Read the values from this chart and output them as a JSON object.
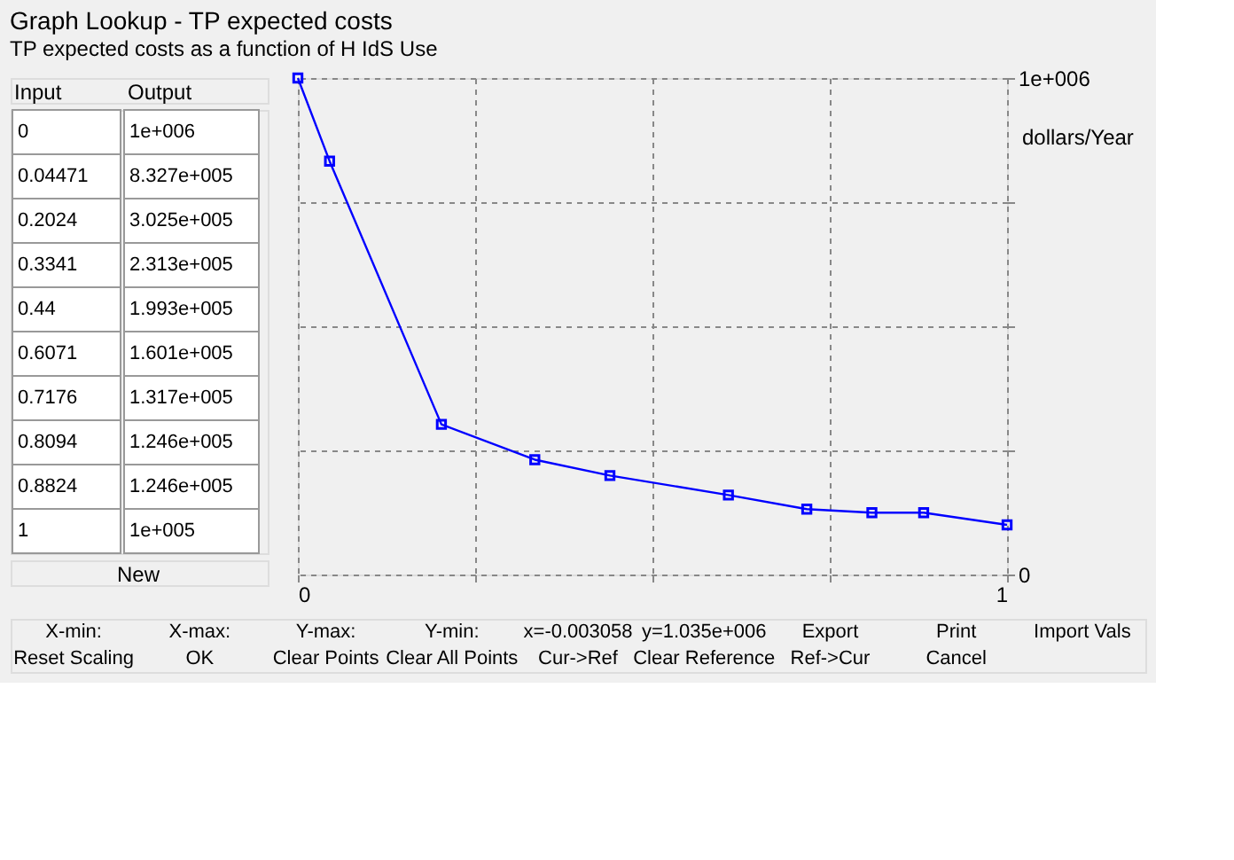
{
  "chart_data": [
    {
      "type": "other",
      "xlabel": "Input",
      "ylabel": "Output",
      "categories": [
        "0",
        "0.04471",
        "0.2024",
        "0.3341",
        "0.44",
        "0.6071",
        "0.7176",
        "0.8094",
        "0.8824",
        "1"
      ],
      "value_labels": [
        "1e+006",
        "8.327e+005",
        "3.025e+005",
        "2.313e+005",
        "1.993e+005",
        "1.601e+005",
        "1.317e+005",
        "1.246e+005",
        "1.246e+005",
        "1e+005"
      ],
      "annotations": [
        "New"
      ]
    },
    {
      "type": "line",
      "title": "Graph Lookup - TP expected costs",
      "subtitle": "TP expected costs as a function of H IdS Use",
      "ylabel": "dollars/Year",
      "x": [
        0,
        0.04471,
        0.2024,
        0.3341,
        0.44,
        0.6071,
        0.7176,
        0.8094,
        0.8824,
        1
      ],
      "series": [
        {
          "color": "#0000ff",
          "values": [
            1000000,
            832700,
            302500,
            231300,
            199300,
            160100,
            131700,
            124600,
            124600,
            100000
          ]
        }
      ],
      "xlim": [
        0,
        1
      ],
      "xticks": [
        0,
        {
          "value": 0.25,
          "label": null
        },
        {
          "value": 0.5,
          "label": null
        },
        {
          "value": 0.75,
          "label": null
        },
        1
      ],
      "ylim": [
        0,
        1000000
      ],
      "yticks": [
        0,
        {
          "value": 250000,
          "label": null
        },
        {
          "value": 500000,
          "label": null
        },
        {
          "value": 750000,
          "label": null
        },
        {
          "value": 1000000,
          "label": "1e+006"
        }
      ],
      "grid": true,
      "marker": "square",
      "line_style": "solid",
      "annotations": [
        "X-min:",
        "X-max:",
        "Y-max:",
        "Y-min:",
        "x=-0.003058",
        "y=1.035e+006",
        "Export",
        "Print",
        "Import Vals",
        "Reset Scaling",
        "OK",
        "Clear Points",
        "Clear All Points",
        "Cur->Ref",
        "Clear Reference",
        "Ref->Cur",
        "Cancel"
      ]
    }
  ]
}
